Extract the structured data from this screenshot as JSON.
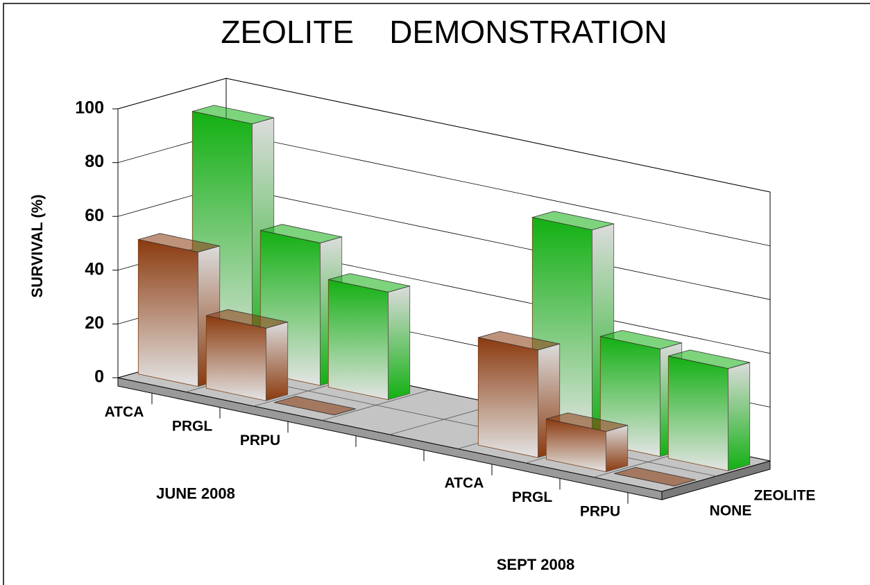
{
  "chart_data": {
    "type": "bar3d",
    "title": "ZEOLITE    DEMONSTRATION",
    "y_label": "SURVIVAL (%)",
    "categories": [
      "ATCA",
      "PRGL",
      "PRPU",
      null,
      null,
      "ATCA",
      "PRGL",
      "PRPU"
    ],
    "group_labels": [
      "JUNE 2008",
      "SEPT 2008"
    ],
    "series": [
      {
        "name": "NONE",
        "color": "#8b3a0e",
        "values": [
          50,
          27,
          0,
          null,
          null,
          40,
          15,
          0
        ]
      },
      {
        "name": "ZEOLITE",
        "color": "#12b012",
        "values": [
          92,
          53,
          40,
          null,
          null,
          79,
          40,
          38
        ]
      }
    ],
    "ylim": [
      0,
      100
    ],
    "yticks": [
      0,
      20,
      40,
      60,
      80,
      100
    ],
    "grid": true
  }
}
